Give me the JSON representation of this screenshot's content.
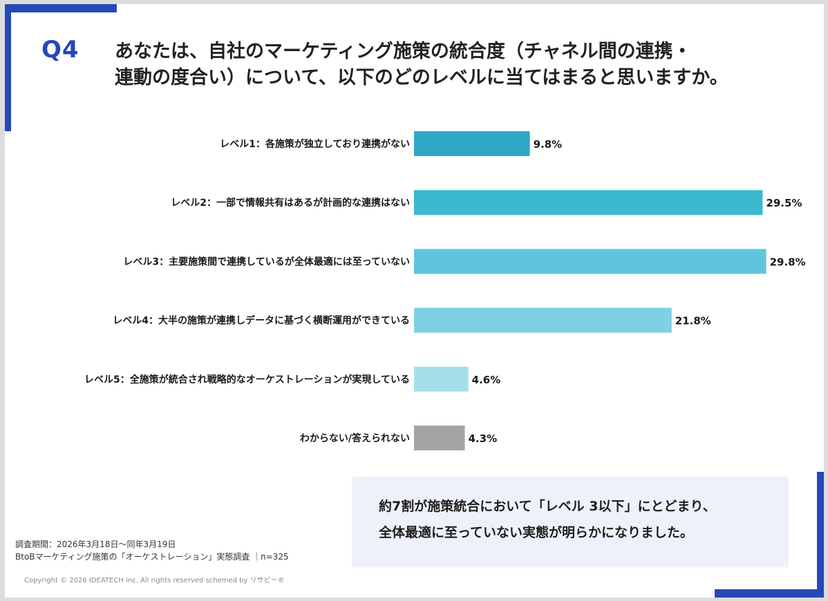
{
  "slide": {
    "question_no": "Q4",
    "question_lines": [
      "あなたは、自社のマーケティング施策の統合度（チャネル間の連携・",
      "連動の度合い）について、以下のどのレベルに当てはまると思いますか。"
    ],
    "callout_lines": [
      "約7割が施策統合において「レベル 3以下」にとどまり、",
      "全体最適に至っていない実態が明らかになりました。"
    ],
    "footnote": {
      "period": "調査期間：2026年3月18日～同年3月19日",
      "survey": "BtoBマーケティング施策の「オーケストレーション」実態調査 ｜n=325"
    },
    "copyright": "Copyright © 2026 IDEATECH inc. All rights reserved schemed by リサピー®"
  },
  "chart_data": {
    "type": "bar",
    "orientation": "horizontal",
    "categories": [
      "レベル1：各施策が独立しており連携がない",
      "レベル2：一部で情報共有はあるが計画的な連携はない",
      "レベル3：主要施策間で連携しているが全体最適には至っていない",
      "レベル4：大半の施策が連携しデータに基づく横断運用ができている",
      "レベル5：全施策が統合され戦略的なオーケストレーションが実現している",
      "わからない/答えられない"
    ],
    "values": [
      9.8,
      29.5,
      29.8,
      21.8,
      4.6,
      4.3
    ],
    "value_labels": [
      "9.8%",
      "29.5%",
      "29.8%",
      "21.8%",
      "4.6%",
      "4.3%"
    ],
    "colors": [
      "#2ea6c6",
      "#3cb8d0",
      "#5ec5dc",
      "#80d0e3",
      "#a6dfec",
      "#a3a3a3"
    ],
    "xlim": [
      0,
      30
    ],
    "grid": false,
    "legend": "none"
  },
  "theme": {
    "accent": "#2549b8"
  }
}
